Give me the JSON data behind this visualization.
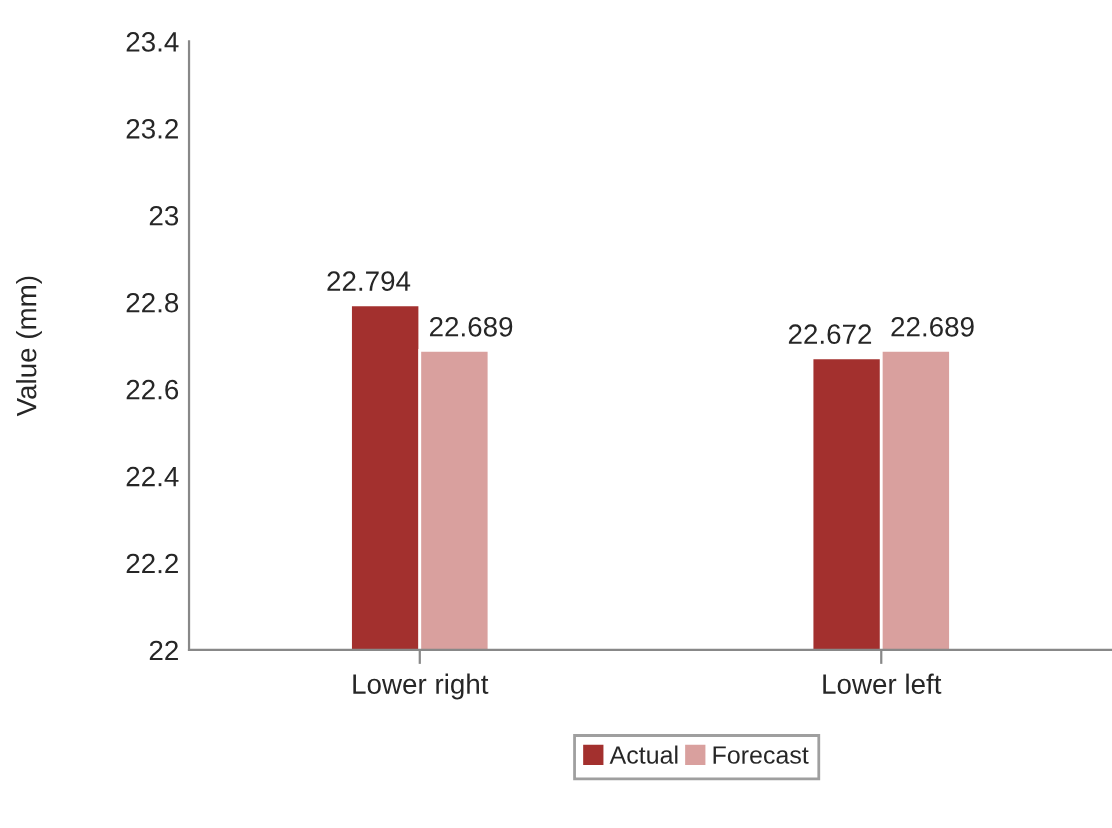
{
  "chart_data": {
    "type": "bar",
    "ylabel": "Value (mm)",
    "categories": [
      "Lower right",
      "Lower left"
    ],
    "series": [
      {
        "name": "Actual",
        "color": "#a3302e",
        "values": [
          22.794,
          22.672
        ]
      },
      {
        "name": "Forecast",
        "color": "#d9a09e",
        "values": [
          22.689,
          22.689
        ]
      }
    ],
    "ylim": [
      22,
      23.4
    ],
    "yticks": [
      22,
      22.2,
      22.4,
      22.6,
      22.8,
      23,
      23.2,
      23.4
    ],
    "data_labels": true,
    "legend": "bottom",
    "grid": false
  }
}
